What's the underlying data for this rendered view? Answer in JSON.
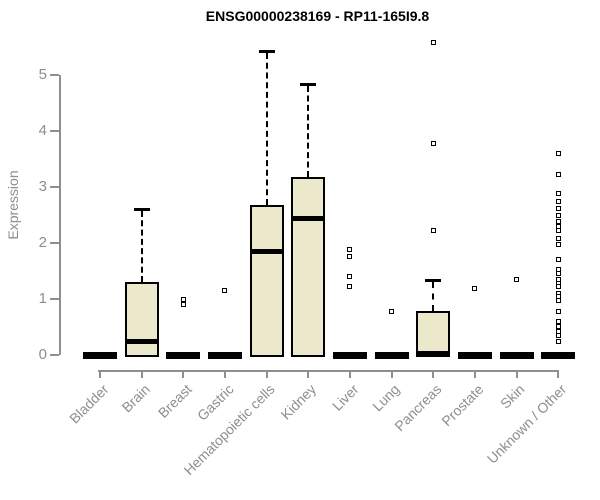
{
  "chart_data": {
    "type": "boxplot",
    "title": "ENSG00000238169 - RP11-165I9.8",
    "ylabel": "Expression",
    "xlabel": "",
    "ylim": [
      0,
      5.6
    ],
    "yticks": [
      0,
      1,
      2,
      3,
      4,
      5
    ],
    "grid": false,
    "legend": "none",
    "colors": {
      "box_fill": "#ECE8CC",
      "box_border": "#000000",
      "axis_line": "#8f8f8f",
      "axis_text": "#8e8e8e",
      "title_text": "#000000"
    },
    "categories": [
      "Bladder",
      "Brain",
      "Breast",
      "Gastric",
      "Hematopoietic cells",
      "Kidney",
      "Liver",
      "Lung",
      "Pancreas",
      "Prostate",
      "Skin",
      "Unknown / Other"
    ],
    "boxes": [
      {
        "category": "Bladder",
        "min": 0,
        "q1": 0,
        "median": 0,
        "q3": 0.02,
        "max": 0.02,
        "outliers": []
      },
      {
        "category": "Brain",
        "min": 0,
        "q1": 0,
        "median": 0.24,
        "q3": 1.3,
        "max": 2.62,
        "outliers": []
      },
      {
        "category": "Breast",
        "min": 0,
        "q1": 0,
        "median": 0,
        "q3": 0.02,
        "max": 0.02,
        "outliers": [
          0.99,
          0.91
        ]
      },
      {
        "category": "Gastric",
        "min": 0,
        "q1": 0,
        "median": 0,
        "q3": 0.02,
        "max": 0.02,
        "outliers": [
          1.15
        ]
      },
      {
        "category": "Hematopoietic cells",
        "min": 0,
        "q1": 0,
        "median": 1.85,
        "q3": 2.67,
        "max": 5.45,
        "outliers": []
      },
      {
        "category": "Kidney",
        "min": 0,
        "q1": 0,
        "median": 2.44,
        "q3": 3.17,
        "max": 4.85,
        "outliers": []
      },
      {
        "category": "Liver",
        "min": 0,
        "q1": 0,
        "median": 0,
        "q3": 0.02,
        "max": 0.02,
        "outliers": [
          1.88,
          1.76,
          1.4,
          1.22
        ]
      },
      {
        "category": "Lung",
        "min": 0,
        "q1": 0,
        "median": 0,
        "q3": 0.02,
        "max": 0.02,
        "outliers": [
          0.77
        ]
      },
      {
        "category": "Pancreas",
        "min": 0,
        "q1": 0,
        "median": 0.02,
        "q3": 0.78,
        "max": 1.35,
        "outliers": [
          5.58,
          3.77,
          2.22
        ]
      },
      {
        "category": "Prostate",
        "min": 0,
        "q1": 0,
        "median": 0,
        "q3": 0.02,
        "max": 0.02,
        "outliers": [
          1.19
        ]
      },
      {
        "category": "Skin",
        "min": 0,
        "q1": 0,
        "median": 0,
        "q3": 0.02,
        "max": 0.02,
        "outliers": [
          1.34
        ]
      },
      {
        "category": "Unknown / Other",
        "min": 0,
        "q1": 0,
        "median": 0,
        "q3": 0.02,
        "max": 0.02,
        "outliers": [
          3.6,
          3.23,
          2.89,
          2.75,
          2.62,
          2.5,
          2.38,
          2.3,
          2.22,
          2.08,
          1.98,
          1.7,
          1.52,
          1.46,
          1.34,
          1.28,
          1.22,
          1.1,
          1.04,
          0.98,
          0.77,
          0.6,
          0.51,
          0.42,
          0.34,
          0.25
        ]
      }
    ]
  }
}
